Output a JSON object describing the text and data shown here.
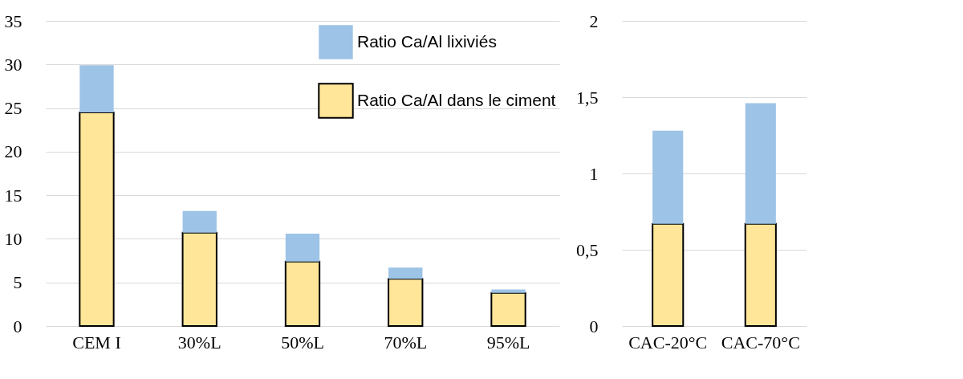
{
  "chart_data": [
    {
      "type": "bar",
      "stacked": true,
      "categories": [
        "CEM I",
        "30%L",
        "50%L",
        "70%L",
        "95%L"
      ],
      "series": [
        {
          "name": "Ratio Ca/Al dans le ciment",
          "color": "#ffe699",
          "values": [
            24.5,
            10.7,
            7.4,
            5.4,
            3.8
          ]
        },
        {
          "name": "Ratio Ca/Al lixiviés",
          "color": "#9dc3e6",
          "values": [
            5.4,
            2.5,
            3.2,
            1.3,
            0.4
          ]
        }
      ],
      "ylim": [
        0,
        35
      ],
      "yticks": [
        0,
        5,
        10,
        15,
        20,
        25,
        30,
        35
      ],
      "grid": "y",
      "legend": "top right"
    },
    {
      "type": "bar",
      "stacked": true,
      "categories": [
        "CAC-20°C",
        "CAC-70°C"
      ],
      "series": [
        {
          "name": "Ratio Ca/Al dans le ciment",
          "color": "#ffe699",
          "values": [
            0.67,
            0.67
          ]
        },
        {
          "name": "Ratio Ca/Al lixiviés",
          "color": "#9dc3e6",
          "values": [
            0.61,
            0.79
          ]
        }
      ],
      "ylim": [
        0,
        2
      ],
      "yticks": [
        0,
        {
          "value": 0.5,
          "label": "0,5"
        },
        1,
        {
          "value": 1.5,
          "label": "1,5"
        },
        2
      ],
      "grid": "y",
      "legend": false
    }
  ]
}
